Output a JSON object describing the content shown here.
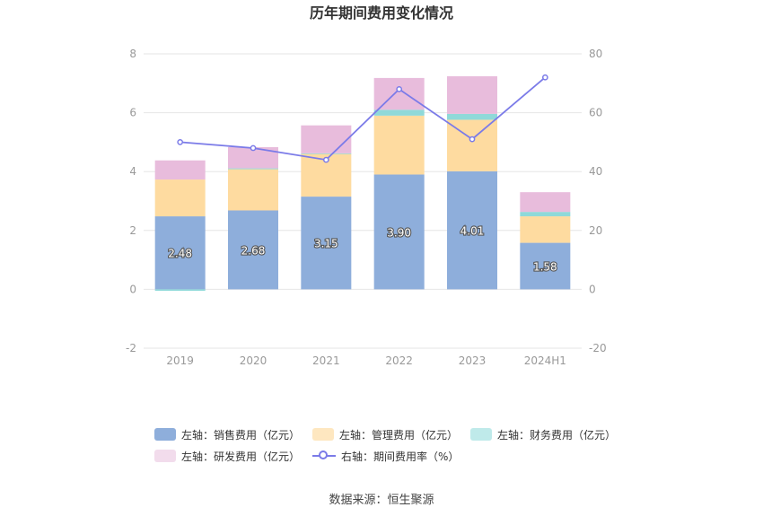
{
  "chart_data": {
    "type": "bar",
    "title": "历年期间费用变化情况",
    "categories": [
      "2019",
      "2020",
      "2021",
      "2022",
      "2023",
      "2024H1"
    ],
    "series": [
      {
        "name": "左轴：销售费用（亿元）",
        "kind": "bar",
        "color": "#8eaedb",
        "values": [
          2.48,
          2.68,
          3.15,
          3.9,
          4.01,
          1.58
        ],
        "labels": [
          "2.48",
          "2.68",
          "3.15",
          "3.90",
          "4.01",
          "1.58"
        ]
      },
      {
        "name": "左轴：管理费用（亿元）",
        "kind": "bar",
        "color": "#fedba0",
        "values": [
          1.25,
          1.4,
          1.45,
          2.0,
          1.75,
          0.9
        ]
      },
      {
        "name": "左轴：财务费用（亿元）",
        "kind": "bar",
        "color": "#8fd9d9",
        "values": [
          -0.05,
          0.03,
          0.02,
          0.2,
          0.2,
          0.15
        ]
      },
      {
        "name": "左轴：研发费用（亿元）",
        "kind": "bar",
        "color": "#e8bcdc",
        "values": [
          0.65,
          0.72,
          0.95,
          1.08,
          1.28,
          0.67
        ]
      },
      {
        "name": "右轴：期间费用率（%）",
        "kind": "line",
        "color": "#7b7be8",
        "values": [
          50,
          48,
          44,
          68,
          51,
          72
        ]
      }
    ],
    "left_axis": {
      "min": -2,
      "max": 8,
      "ticks": [
        "-2",
        "0",
        "2",
        "4",
        "6",
        "8"
      ]
    },
    "right_axis": {
      "min": -20,
      "max": 80,
      "ticks": [
        "-20",
        "0",
        "20",
        "40",
        "60",
        "80"
      ]
    },
    "grid": true,
    "legend_position": "bottom"
  },
  "source_text": "数据来源：恒生聚源"
}
